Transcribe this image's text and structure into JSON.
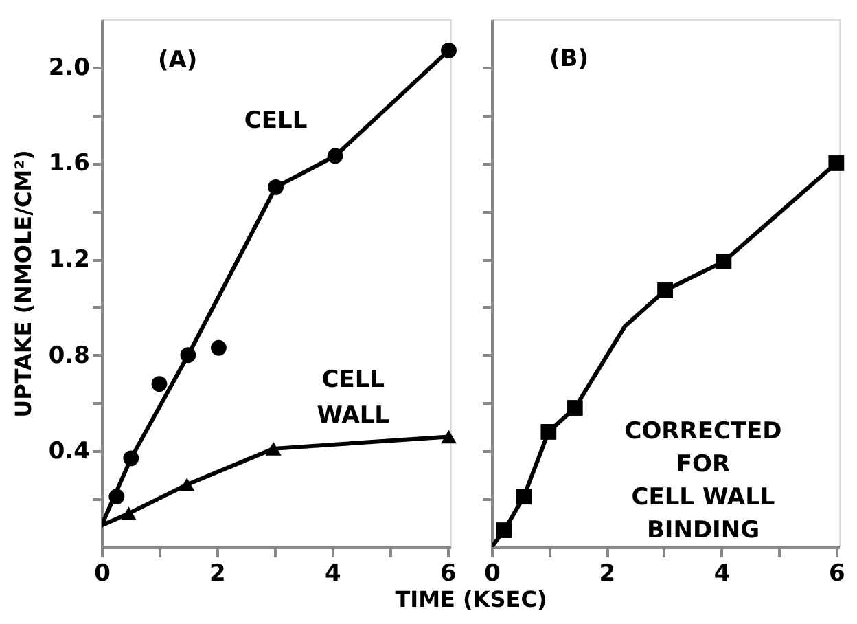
{
  "chart_data": [
    {
      "type": "line",
      "xlabel": "TIME (KSEC)",
      "ylabel": "UPTAKE (NMOLE/CM²)",
      "xlim": [
        0,
        6.05
      ],
      "ylim": [
        0,
        2.2
      ],
      "xticks": [
        0,
        {
          "value": 1,
          "label": null
        },
        2,
        {
          "value": 3,
          "label": null
        },
        4,
        {
          "value": 5,
          "label": null
        },
        6
      ],
      "yticks": [
        {
          "value": 0.2,
          "label": null
        },
        0.4,
        {
          "value": 0.6,
          "label": null
        },
        0.8,
        {
          "value": 1.0,
          "label": null
        },
        1.2,
        {
          "value": 1.4,
          "label": null
        },
        1.6,
        {
          "value": 1.8,
          "label": null
        },
        {
          "value": 2.0,
          "label": "2.0"
        }
      ],
      "grid": false,
      "annotations": [
        "(A)"
      ],
      "series": [
        {
          "name": "CELL",
          "type": "scatter",
          "marker": "circle",
          "color": "#000000",
          "x": [
            0.26,
            0.51,
            1.0,
            1.5,
            2.03,
            3.02,
            4.05,
            6.02
          ],
          "values": [
            0.21,
            0.37,
            0.68,
            0.8,
            0.83,
            1.5,
            1.63,
            2.07
          ]
        },
        {
          "marker": "none",
          "color": "#000000",
          "x": [
            0,
            0.51,
            1.5,
            3.02,
            4.05,
            6.02
          ],
          "values": [
            0.09,
            0.37,
            0.8,
            1.5,
            1.63,
            2.07
          ]
        },
        {
          "name": "CELL WALL",
          "type": "scatter",
          "marker": "triangle",
          "color": "#000000",
          "x": [
            0.47,
            1.48,
            2.98,
            6.02
          ],
          "values": [
            0.14,
            0.26,
            0.41,
            0.46
          ]
        },
        {
          "marker": "none",
          "color": "#000000",
          "x": [
            0,
            0.47,
            1.48,
            2.98,
            6.02
          ],
          "values": [
            0.09,
            0.14,
            0.26,
            0.41,
            0.46
          ]
        }
      ]
    },
    {
      "type": "line",
      "xlim": [
        0,
        6.05
      ],
      "ylim": [
        0,
        2.2
      ],
      "tick_labels": "x",
      "xticks": [
        0,
        {
          "value": 1,
          "label": null
        },
        2,
        {
          "value": 3,
          "label": null
        },
        4,
        {
          "value": 5,
          "label": null
        },
        6
      ],
      "yticks": [
        {
          "value": 0.2,
          "label": null
        },
        {
          "value": 0.4,
          "label": null
        },
        {
          "value": 0.6,
          "label": null
        },
        {
          "value": 0.8,
          "label": null
        },
        {
          "value": 1.0,
          "label": null
        },
        {
          "value": 1.2,
          "label": null
        },
        {
          "value": 1.4,
          "label": null
        },
        {
          "value": 1.6,
          "label": null
        },
        {
          "value": 1.8,
          "label": null
        },
        {
          "value": 2.0,
          "label": null
        }
      ],
      "grid": false,
      "annotations": [
        "(B)",
        "CORRECTED\nFOR\nCELL WALL\nBINDING"
      ],
      "series": [
        {
          "type": "scatter",
          "marker": "square",
          "color": "#000000",
          "x": [
            0.22,
            0.56,
            0.99,
            1.45,
            3.02,
            4.04,
            6.0
          ],
          "values": [
            0.07,
            0.21,
            0.48,
            0.58,
            1.07,
            1.19,
            1.6
          ]
        },
        {
          "marker": "none",
          "color": "#000000",
          "x": [
            0,
            0.22,
            0.56,
            0.99,
            1.45,
            2.32,
            3.02,
            4.04,
            6.0
          ],
          "values": [
            0,
            0.07,
            0.21,
            0.48,
            0.58,
            0.92,
            1.07,
            1.19,
            1.6
          ]
        }
      ]
    }
  ]
}
